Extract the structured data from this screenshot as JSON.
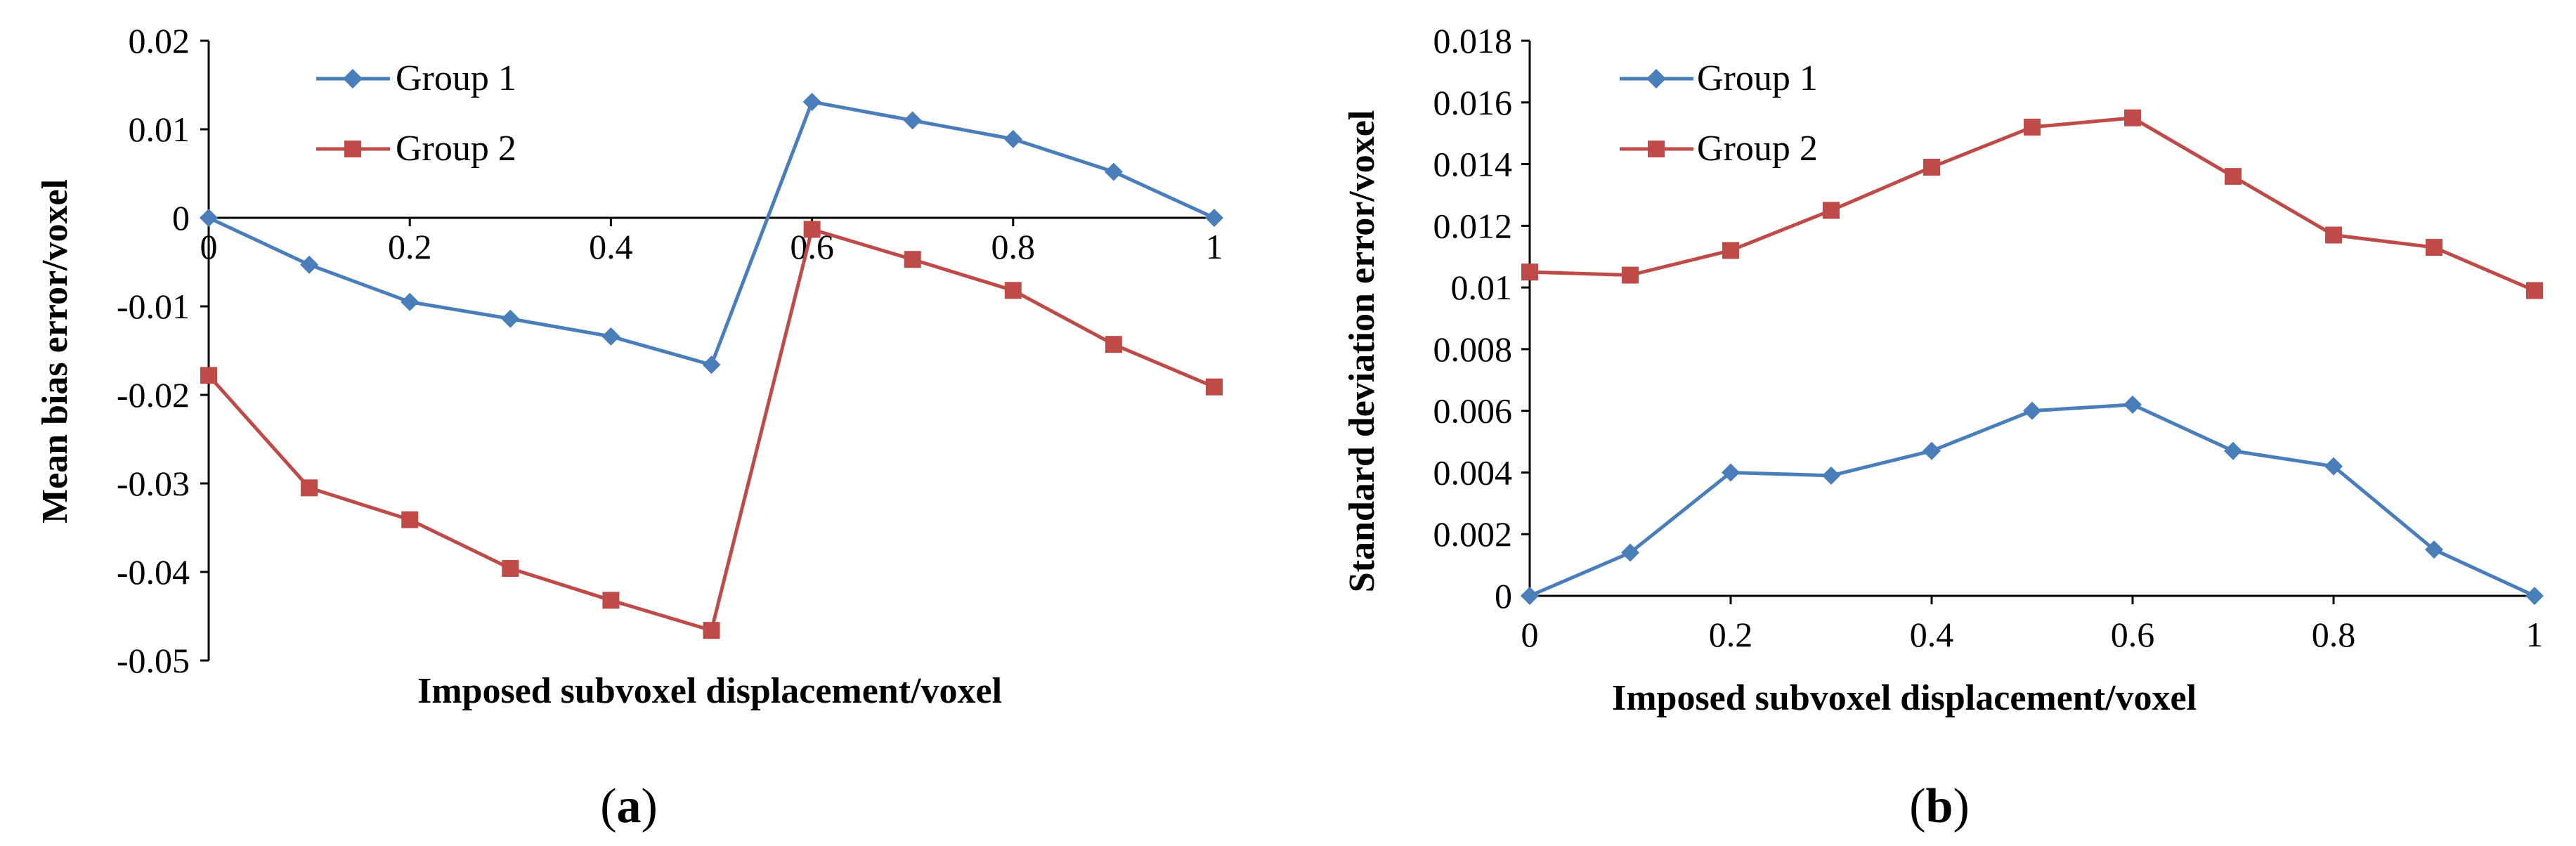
{
  "colors": {
    "group1": "#4A7EBB",
    "group2": "#BE4B48"
  },
  "chart_data": [
    {
      "type": "line",
      "panel": "a",
      "panel_label": {
        "open": "(",
        "letter": "a",
        "close": ")"
      },
      "title": "",
      "xlabel": "Imposed subvoxel displacement/voxel",
      "ylabel": "Mean bias error/voxel",
      "xlim": [
        0,
        1
      ],
      "ylim": [
        -0.05,
        0.02
      ],
      "x_ticks": [
        0,
        0.2,
        0.4,
        0.6,
        0.8,
        1
      ],
      "x_tick_labels": [
        "0",
        "0.2",
        "0.4",
        "0.6",
        "0.8",
        "1"
      ],
      "y_ticks": [
        0.02,
        0.01,
        0,
        -0.01,
        -0.02,
        -0.03,
        -0.04,
        -0.05
      ],
      "y_tick_labels": [
        "0.02",
        "0.01",
        "0",
        "-0.01",
        "-0.02",
        "-0.03",
        "-0.04",
        "-0.05"
      ],
      "x": [
        0,
        0.1,
        0.2,
        0.3,
        0.4,
        0.5,
        0.6,
        0.7,
        0.8,
        0.9,
        1
      ],
      "series": [
        {
          "name": "Group 1",
          "marker": "diamond",
          "values": [
            0,
            -0.0053,
            -0.0095,
            -0.0114,
            -0.0134,
            -0.0166,
            0.0131,
            0.011,
            0.0089,
            0.0052,
            0
          ]
        },
        {
          "name": "Group 2",
          "marker": "square",
          "values": [
            -0.0178,
            -0.0305,
            -0.0341,
            -0.0396,
            -0.0432,
            -0.0466,
            -0.0013,
            -0.0047,
            -0.0082,
            -0.0143,
            -0.0191
          ]
        }
      ],
      "legend_position": "top-left",
      "grid": false
    },
    {
      "type": "line",
      "panel": "b",
      "panel_label": {
        "open": "(",
        "letter": "b",
        "close": ")"
      },
      "title": "",
      "xlabel": "Imposed subvoxel displacement/voxel",
      "ylabel": "Standard deviation error/voxel",
      "xlim": [
        0,
        1
      ],
      "ylim": [
        0,
        0.018
      ],
      "x_ticks": [
        0,
        0.2,
        0.4,
        0.6,
        0.8,
        1
      ],
      "x_tick_labels": [
        "0",
        "0.2",
        "0.4",
        "0.6",
        "0.8",
        "1"
      ],
      "y_ticks": [
        0,
        0.002,
        0.004,
        0.006,
        0.008,
        0.01,
        0.012,
        0.014,
        0.016,
        0.018
      ],
      "y_tick_labels": [
        "0",
        "0.002",
        "0.004",
        "0.006",
        "0.008",
        "0.01",
        "0.012",
        "0.014",
        "0.016",
        "0.018"
      ],
      "x": [
        0,
        0.1,
        0.2,
        0.3,
        0.4,
        0.5,
        0.6,
        0.7,
        0.8,
        0.9,
        1
      ],
      "series": [
        {
          "name": "Group 1",
          "marker": "diamond",
          "values": [
            0,
            0.0014,
            0.004,
            0.0039,
            0.0047,
            0.006,
            0.0062,
            0.0047,
            0.0042,
            0.0015,
            0
          ]
        },
        {
          "name": "Group 2",
          "marker": "square",
          "values": [
            0.0105,
            0.0104,
            0.0112,
            0.0125,
            0.0139,
            0.0152,
            0.0155,
            0.0136,
            0.0117,
            0.0113,
            0.0099
          ]
        }
      ],
      "legend_position": "top-left",
      "grid": false
    }
  ]
}
